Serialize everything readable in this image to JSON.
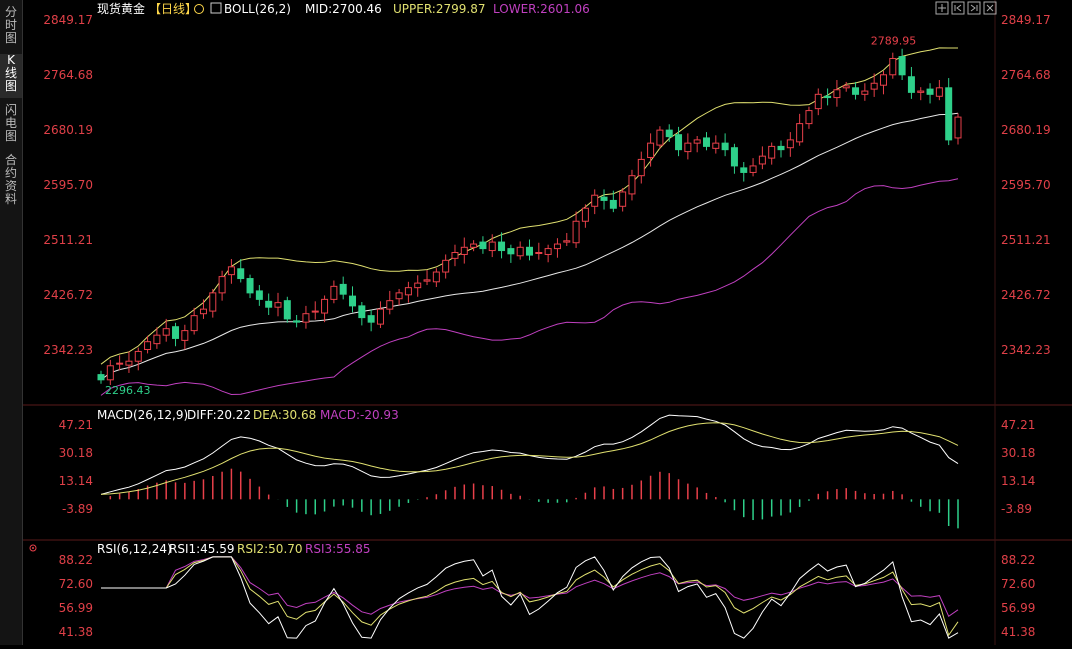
{
  "sidebar": {
    "items": [
      {
        "label": "分\n时\n图",
        "active": false
      },
      {
        "label": "K\n线\n图",
        "active": true
      },
      {
        "label": "闪\n电\n图",
        "active": false
      },
      {
        "label": "合\n约\n资\n料",
        "active": false
      }
    ]
  },
  "header": {
    "instrument": "现货黄金",
    "period": "【日线】",
    "boll_name": "BOLL(26,2)",
    "mid": "MID:2700.46",
    "upper": "UPPER:2799.87",
    "lower": "LOWER:2601.06"
  },
  "macd_header": {
    "name": "MACD(26,12,9)",
    "diff": "DIFF:20.22",
    "dea": "DEA:30.68",
    "macd": "MACD:-20.93"
  },
  "rsi_header": {
    "name": "RSI(6,12,24)",
    "rsi1": "RSI1:45.59",
    "rsi2": "RSI2:50.70",
    "rsi3": "RSI3:55.85"
  },
  "price_axis": [
    "2849.17",
    "2764.68",
    "2680.19",
    "2595.70",
    "2511.21",
    "2426.72",
    "2342.23"
  ],
  "macd_axis": [
    "47.21",
    "30.18",
    "13.14",
    "-3.89"
  ],
  "rsi_axis": [
    "88.22",
    "72.60",
    "56.99",
    "41.38"
  ],
  "annotations": {
    "high_label": "2789.95",
    "low_label": "2296.43"
  },
  "colors": {
    "up": "#e8404a",
    "down": "#2ed08a",
    "mid": "#e8e8e8",
    "upper": "#e0e070",
    "lower": "#c040c0",
    "axis_text": "#e04048",
    "grid": "#4a1a1a"
  },
  "icons": [
    "zoom-icon",
    "prev-icon",
    "next-icon",
    "close-icon"
  ],
  "chart_data": {
    "type": "candlestick",
    "price_range": [
      2296.43,
      2849.17
    ],
    "closes": [
      2296.43,
      2318,
      2322,
      2325,
      2340,
      2355,
      2365,
      2375,
      2360,
      2372,
      2395,
      2405,
      2430,
      2455,
      2470,
      2452,
      2430,
      2420,
      2408,
      2415,
      2390,
      2385,
      2398,
      2402,
      2420,
      2440,
      2428,
      2410,
      2392,
      2385,
      2405,
      2418,
      2430,
      2438,
      2445,
      2450,
      2462,
      2480,
      2492,
      2500,
      2505,
      2498,
      2508,
      2495,
      2490,
      2500,
      2488,
      2492,
      2498,
      2505,
      2510,
      2540,
      2560,
      2580,
      2572,
      2560,
      2585,
      2610,
      2635,
      2660,
      2680,
      2670,
      2650,
      2660,
      2665,
      2655,
      2660,
      2650,
      2625,
      2615,
      2625,
      2640,
      2655,
      2650,
      2665,
      2690,
      2710,
      2735,
      2730,
      2742,
      2748,
      2735,
      2740,
      2752,
      2765,
      2790,
      2765,
      2738,
      2740,
      2735,
      2745,
      2665,
      2700
    ],
    "macd_diff_range": [
      -3.89,
      47.21
    ],
    "rsi_range": [
      41.38,
      88.22
    ]
  }
}
